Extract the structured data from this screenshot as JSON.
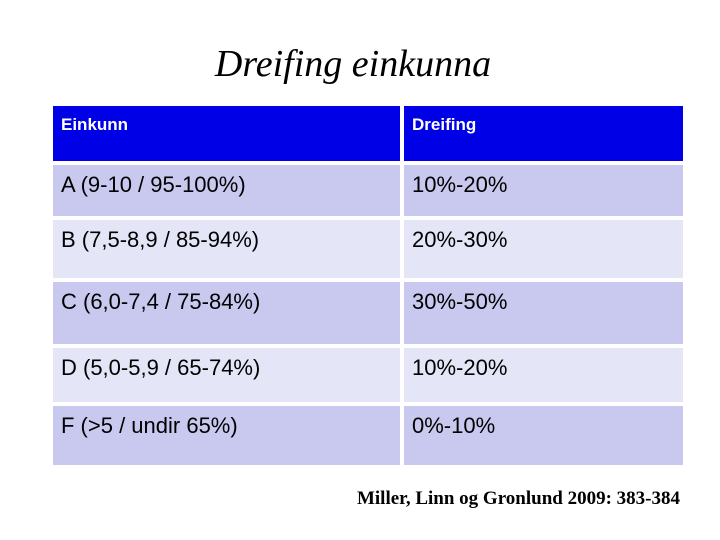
{
  "slide": {
    "title": "Dreifing einkunna",
    "citation": "Miller, Linn og Gronlund 2009: 383-384"
  },
  "table": {
    "columns": [
      "Einkunn",
      "Dreifing"
    ],
    "rows": [
      {
        "einkunn": "A (9-10 / 95-100%)",
        "dreifing": "10%-20%"
      },
      {
        "einkunn": "B (7,5-8,9 / 85-94%)",
        "dreifing": "20%-30%"
      },
      {
        "einkunn": "C (6,0-7,4 / 75-84%)",
        "dreifing": "30%-50%"
      },
      {
        "einkunn": "D (5,0-5,9 / 65-74%)",
        "dreifing": "10%-20%"
      },
      {
        "einkunn": "F (>5 / undir 65%)",
        "dreifing": "0%-10%"
      }
    ]
  },
  "colors": {
    "header_bg": "#0000e6",
    "header_text": "#ffffff",
    "row_dark": "#c9c9ef",
    "row_light": "#e5e5f8",
    "body_text": "#000000"
  }
}
